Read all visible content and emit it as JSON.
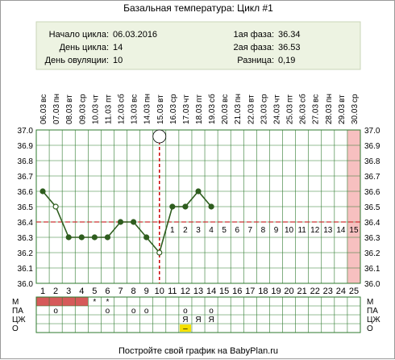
{
  "chart_data": {
    "type": "line",
    "title": "Базальная температура: Цикл #1",
    "info": {
      "left": [
        {
          "label": "Начало цикла:",
          "value": "06.03.2016"
        },
        {
          "label": "День цикла:",
          "value": "14"
        },
        {
          "label": "День овуляции:",
          "value": "10"
        }
      ],
      "right": [
        {
          "label": "1ая фаза:",
          "value": "36.34"
        },
        {
          "label": "2ая фаза:",
          "value": "36.53"
        },
        {
          "label": "Разница:",
          "value": "0,19"
        }
      ]
    },
    "weekdays": [
      "вс",
      "пн",
      "вт",
      "ср",
      "чт",
      "пт",
      "сб",
      "вс",
      "пн",
      "вт",
      "ср",
      "чт",
      "пт",
      "сб",
      "вс",
      "пн",
      "вт",
      "ср",
      "чт",
      "пт",
      "сб",
      "вс",
      "пн",
      "вт",
      "ср"
    ],
    "dates": [
      "06.03",
      "07.03",
      "08.03",
      "09.03",
      "10.03",
      "11.03",
      "12.03",
      "13.03",
      "14.03",
      "15.03",
      "16.03",
      "17.03",
      "18.03",
      "19.03",
      "20.03",
      "21.03",
      "22.03",
      "23.03",
      "24.03",
      "25.03",
      "26.03",
      "27.03",
      "28.03",
      "29.03",
      "30.03"
    ],
    "days": [
      "1",
      "2",
      "3",
      "4",
      "5",
      "6",
      "7",
      "8",
      "9",
      "10",
      "11",
      "12",
      "13",
      "14",
      "15",
      "16",
      "17",
      "18",
      "19",
      "20",
      "21",
      "22",
      "23",
      "24",
      "25"
    ],
    "y_ticks": [
      "36.0",
      "36.1",
      "36.2",
      "36.3",
      "36.4",
      "36.5",
      "36.6",
      "36.7",
      "36.8",
      "36.9",
      "37.0"
    ],
    "ylim": [
      36.0,
      37.0
    ],
    "xlim": [
      1,
      25
    ],
    "points": [
      {
        "day": 1,
        "temp": 36.6,
        "hollow": false
      },
      {
        "day": 2,
        "temp": 36.5,
        "hollow": true
      },
      {
        "day": 3,
        "temp": 36.3,
        "hollow": false
      },
      {
        "day": 4,
        "temp": 36.3,
        "hollow": false
      },
      {
        "day": 5,
        "temp": 36.3,
        "hollow": false
      },
      {
        "day": 6,
        "temp": 36.3,
        "hollow": false
      },
      {
        "day": 7,
        "temp": 36.4,
        "hollow": false
      },
      {
        "day": 8,
        "temp": 36.4,
        "hollow": false
      },
      {
        "day": 9,
        "temp": 36.3,
        "hollow": false
      },
      {
        "day": 10,
        "temp": 36.2,
        "hollow": true
      },
      {
        "day": 11,
        "temp": 36.5,
        "hollow": false
      },
      {
        "day": 12,
        "temp": 36.5,
        "hollow": false
      },
      {
        "day": 13,
        "temp": 36.6,
        "hollow": false
      },
      {
        "day": 14,
        "temp": 36.5,
        "hollow": false
      }
    ],
    "coverline": 36.4,
    "ovulation_day": 10,
    "luteal_numbers": [
      "1",
      "2",
      "3",
      "4",
      "5",
      "6",
      "7",
      "8",
      "9",
      "10",
      "11",
      "12",
      "13",
      "14",
      "15"
    ],
    "highlight_day": 25,
    "grid": true,
    "table": {
      "row_labels": [
        "М",
        "ПА",
        "ЦЖ",
        "О"
      ],
      "menstruation_days": [
        1,
        2,
        3,
        4
      ],
      "menstruation_marks": [
        {
          "day": 5,
          "symbol": "*"
        },
        {
          "day": 6,
          "symbol": "*"
        }
      ],
      "pa_marks": [
        {
          "day": 2,
          "symbol": "o"
        },
        {
          "day": 6,
          "symbol": "o"
        },
        {
          "day": 8,
          "symbol": "o"
        },
        {
          "day": 9,
          "symbol": "o"
        },
        {
          "day": 12,
          "symbol": "o"
        },
        {
          "day": 14,
          "symbol": "o"
        }
      ],
      "cz_marks": [
        {
          "day": 12,
          "symbol": "Я"
        },
        {
          "day": 13,
          "symbol": "Я"
        },
        {
          "day": 14,
          "symbol": "Я"
        }
      ],
      "o_marks": [
        {
          "day": 12,
          "symbol": "–"
        }
      ]
    },
    "colors": {
      "line": "#2e5d1e",
      "coverline": "#cc3333",
      "ovulation": "#cc0000",
      "grid": "#2e7a2e",
      "menstruation": "#d65a5a",
      "highlight": "#f7c0c0",
      "info_bg": "#edf3e2",
      "o_mark": "#f5e000",
      "luteal_text": "#d66060"
    }
  },
  "footer": "Постройте свой график на BabyPlan.ru"
}
